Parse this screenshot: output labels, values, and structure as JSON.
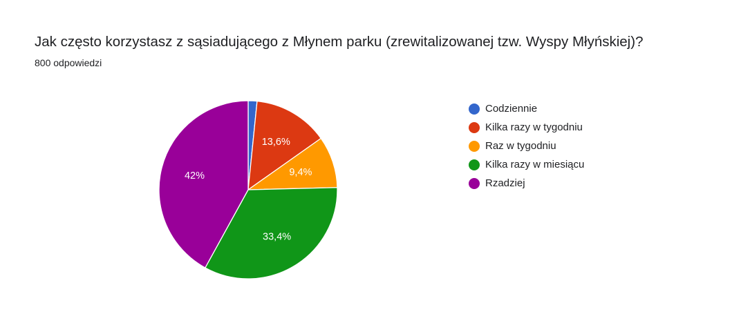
{
  "question": {
    "title": "Jak często korzystasz z sąsiadującego z Młynem parku (zrewitalizowanej tzw. Wyspy Młyńskiej)?",
    "responses": "800 odpowiedzi"
  },
  "chart_data": {
    "type": "pie",
    "title": "Jak często korzystasz z sąsiadującego z Młynem parku (zrewitalizowanej tzw. Wyspy Młyńskiej)?",
    "subtitle": "800 odpowiedzi",
    "start_angle_deg": 90,
    "direction": "clockwise",
    "legend_position": "right",
    "slices": [
      {
        "label": "Codziennie",
        "value": 1.6,
        "display": "",
        "color": "#3366cc"
      },
      {
        "label": "Kilka razy w tygodniu",
        "value": 13.6,
        "display": "13,6%",
        "color": "#dc3912"
      },
      {
        "label": "Raz w tygodniu",
        "value": 9.4,
        "display": "9,4%",
        "color": "#ff9900"
      },
      {
        "label": "Kilka razy w miesiącu",
        "value": 33.4,
        "display": "33,4%",
        "color": "#109618"
      },
      {
        "label": "Rzadziej",
        "value": 42.0,
        "display": "42%",
        "color": "#990099"
      }
    ]
  }
}
